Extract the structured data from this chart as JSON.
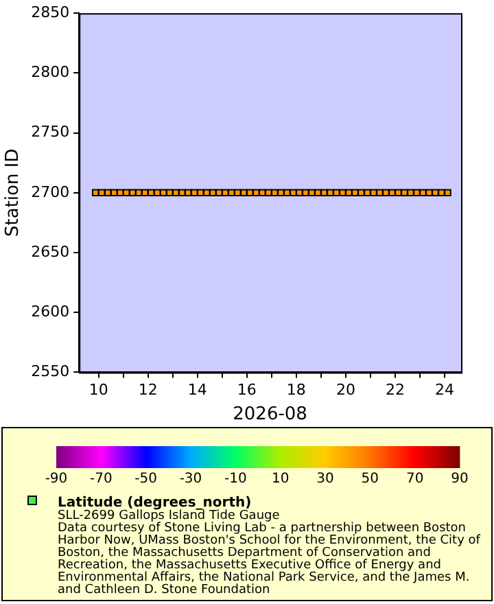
{
  "chart_data": {
    "type": "scatter",
    "xlabel": "2026-08",
    "ylabel": "Station ID",
    "clabel": "Latitude (degrees_north)",
    "annotations": [
      "SLL-2699 Gallops Island Tide Gauge",
      "Data courtesy of Stone Living Lab - a partnership between Boston Harbor Now, UMass Boston's School for the Environment, the City of Boston, the Massachusetts Department of Conservation and Recreation, the Massachusetts Executive Office of Energy and Environmental Affairs, the National Park Service, and the James M. and Cathleen D. Stone Foundation"
    ],
    "xlim": [
      "2026-08-09T05:00",
      "2026-08-24T16:00"
    ],
    "xticks": [
      {
        "value": "2026-08-10",
        "label": "10"
      },
      {
        "value": "2026-08-11",
        "label": null
      },
      {
        "value": "2026-08-12",
        "label": "12"
      },
      {
        "value": "2026-08-13",
        "label": null
      },
      {
        "value": "2026-08-14",
        "label": "14"
      },
      {
        "value": "2026-08-15",
        "label": null
      },
      {
        "value": "2026-08-16",
        "label": "16"
      },
      {
        "value": "2026-08-17",
        "label": null
      },
      {
        "value": "2026-08-18",
        "label": "18"
      },
      {
        "value": "2026-08-19",
        "label": null
      },
      {
        "value": "2026-08-20",
        "label": "20"
      },
      {
        "value": "2026-08-21",
        "label": null
      },
      {
        "value": "2026-08-22",
        "label": "22"
      },
      {
        "value": "2026-08-23",
        "label": null
      },
      {
        "value": "2026-08-24",
        "label": "24"
      }
    ],
    "ylim": [
      2550,
      2850
    ],
    "yticks": [
      2550,
      2600,
      2650,
      2700,
      2750,
      2800,
      2850
    ],
    "clim": [
      -90,
      90
    ],
    "cticks": [
      -90,
      -70,
      -50,
      -30,
      -10,
      10,
      30,
      50,
      70,
      90
    ],
    "grid": false,
    "marker": "square",
    "x": [
      "2026-08-09T21:00",
      "2026-08-10T03:00",
      "2026-08-10T09:00",
      "2026-08-10T15:00",
      "2026-08-10T21:00",
      "2026-08-11T03:00",
      "2026-08-11T09:00",
      "2026-08-11T15:00",
      "2026-08-11T21:00",
      "2026-08-12T03:00",
      "2026-08-12T09:00",
      "2026-08-12T15:00",
      "2026-08-12T21:00",
      "2026-08-13T03:00",
      "2026-08-13T09:00",
      "2026-08-13T15:00",
      "2026-08-13T21:00",
      "2026-08-14T03:00",
      "2026-08-14T09:00",
      "2026-08-14T15:00",
      "2026-08-14T21:00",
      "2026-08-15T03:00",
      "2026-08-15T09:00",
      "2026-08-15T15:00",
      "2026-08-15T21:00",
      "2026-08-16T03:00",
      "2026-08-16T09:00",
      "2026-08-16T15:00",
      "2026-08-16T21:00",
      "2026-08-17T03:00",
      "2026-08-17T09:00",
      "2026-08-17T15:00",
      "2026-08-17T21:00",
      "2026-08-18T03:00",
      "2026-08-18T09:00",
      "2026-08-18T15:00",
      "2026-08-18T21:00",
      "2026-08-19T03:00",
      "2026-08-19T09:00",
      "2026-08-19T15:00",
      "2026-08-19T21:00",
      "2026-08-20T03:00",
      "2026-08-20T09:00",
      "2026-08-20T15:00",
      "2026-08-20T21:00",
      "2026-08-21T03:00",
      "2026-08-21T09:00",
      "2026-08-21T15:00",
      "2026-08-21T21:00",
      "2026-08-22T03:00",
      "2026-08-22T09:00",
      "2026-08-22T15:00",
      "2026-08-22T21:00",
      "2026-08-23T03:00",
      "2026-08-23T09:00",
      "2026-08-23T15:00",
      "2026-08-23T21:00",
      "2026-08-24T03:00"
    ],
    "values": [
      2700,
      2700,
      2700,
      2700,
      2700,
      2700,
      2700,
      2700,
      2700,
      2700,
      2700,
      2700,
      2700,
      2700,
      2700,
      2700,
      2700,
      2700,
      2700,
      2700,
      2700,
      2700,
      2700,
      2700,
      2700,
      2700,
      2700,
      2700,
      2700,
      2700,
      2700,
      2700,
      2700,
      2700,
      2700,
      2700,
      2700,
      2700,
      2700,
      2700,
      2700,
      2700,
      2700,
      2700,
      2700,
      2700,
      2700,
      2700,
      2700,
      2700,
      2700,
      2700,
      2700,
      2700,
      2700,
      2700,
      2700,
      2700
    ],
    "cvalues": [
      42.3,
      42.3,
      42.3,
      42.3,
      42.3,
      42.3,
      42.3,
      42.3,
      42.3,
      42.3,
      42.3,
      42.3,
      42.3,
      42.3,
      42.3,
      42.3,
      42.3,
      42.3,
      42.3,
      42.3,
      42.3,
      42.3,
      42.3,
      42.3,
      42.3,
      42.3,
      42.3,
      42.3,
      42.3,
      42.3,
      42.3,
      42.3,
      42.3,
      42.3,
      42.3,
      42.3,
      42.3,
      42.3,
      42.3,
      42.3,
      42.3,
      42.3,
      42.3,
      42.3,
      42.3,
      42.3,
      42.3,
      42.3,
      42.3,
      42.3,
      42.3,
      42.3,
      42.3,
      42.3,
      42.3,
      42.3,
      42.3,
      42.3
    ]
  }
}
